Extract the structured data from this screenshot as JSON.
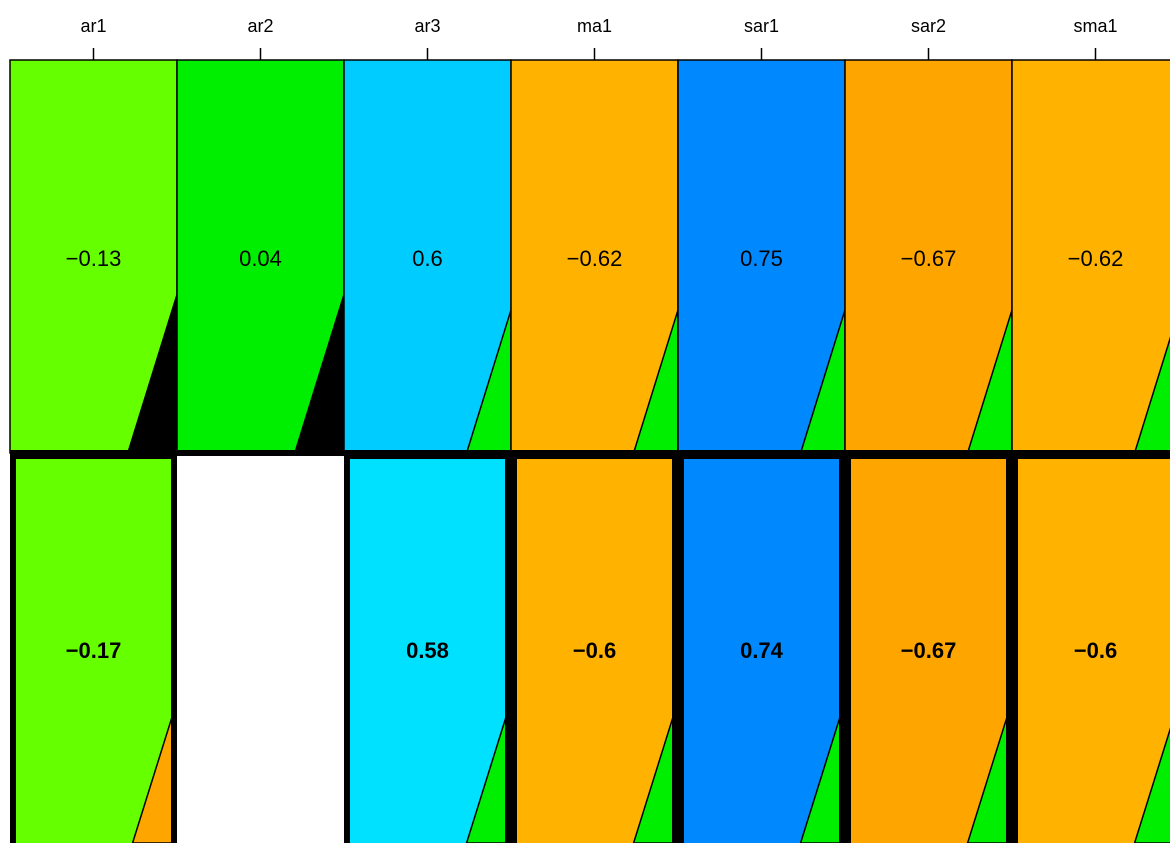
{
  "chart_data": {
    "type": "heatmap",
    "title": "",
    "columns": [
      "ar1",
      "ar2",
      "ar3",
      "ma1",
      "sar1",
      "sar2",
      "sma1"
    ],
    "rows": [
      {
        "emphasis": "normal",
        "cells": [
          {
            "label": "−0.13",
            "value": -0.13,
            "color": "#66ff00",
            "corner_color": "#000000",
            "corner_fraction": 0.31
          },
          {
            "label": "0.04",
            "value": 0.04,
            "color": "#00ee00",
            "corner_color": "#000000",
            "corner_fraction": 0.31
          },
          {
            "label": "0.6",
            "value": 0.6,
            "color": "#00ccff",
            "corner_color": "#00ee00",
            "corner_fraction": 0.28
          },
          {
            "label": "−0.62",
            "value": -0.62,
            "color": "#ffb300",
            "corner_color": "#00ee00",
            "corner_fraction": 0.28
          },
          {
            "label": "0.75",
            "value": 0.75,
            "color": "#0088ff",
            "corner_color": "#00ee00",
            "corner_fraction": 0.28
          },
          {
            "label": "−0.67",
            "value": -0.67,
            "color": "#ffa500",
            "corner_color": "#00ee00",
            "corner_fraction": 0.28
          },
          {
            "label": "−0.62",
            "value": -0.62,
            "color": "#ffb300",
            "corner_color": "#00ee00",
            "corner_fraction": 0.28
          }
        ]
      },
      {
        "emphasis": "bold",
        "cells": [
          {
            "label": "−0.17",
            "value": -0.17,
            "color": "#66ff00",
            "corner_color": "#ffa500",
            "corner_fraction": 0.28
          },
          {
            "label": "",
            "value": null,
            "color": "#ffffff",
            "corner_color": null,
            "corner_fraction": 0
          },
          {
            "label": "0.58",
            "value": 0.58,
            "color": "#00e0ff",
            "corner_color": "#00ee00",
            "corner_fraction": 0.28
          },
          {
            "label": "−0.6",
            "value": -0.6,
            "color": "#ffb300",
            "corner_color": "#00ee00",
            "corner_fraction": 0.28
          },
          {
            "label": "0.74",
            "value": 0.74,
            "color": "#0088ff",
            "corner_color": "#00ee00",
            "corner_fraction": 0.28
          },
          {
            "label": "−0.67",
            "value": -0.67,
            "color": "#ffa500",
            "corner_color": "#00ee00",
            "corner_fraction": 0.28
          },
          {
            "label": "−0.6",
            "value": -0.6,
            "color": "#ffb300",
            "corner_color": "#00ee00",
            "corner_fraction": 0.28
          }
        ]
      }
    ]
  }
}
